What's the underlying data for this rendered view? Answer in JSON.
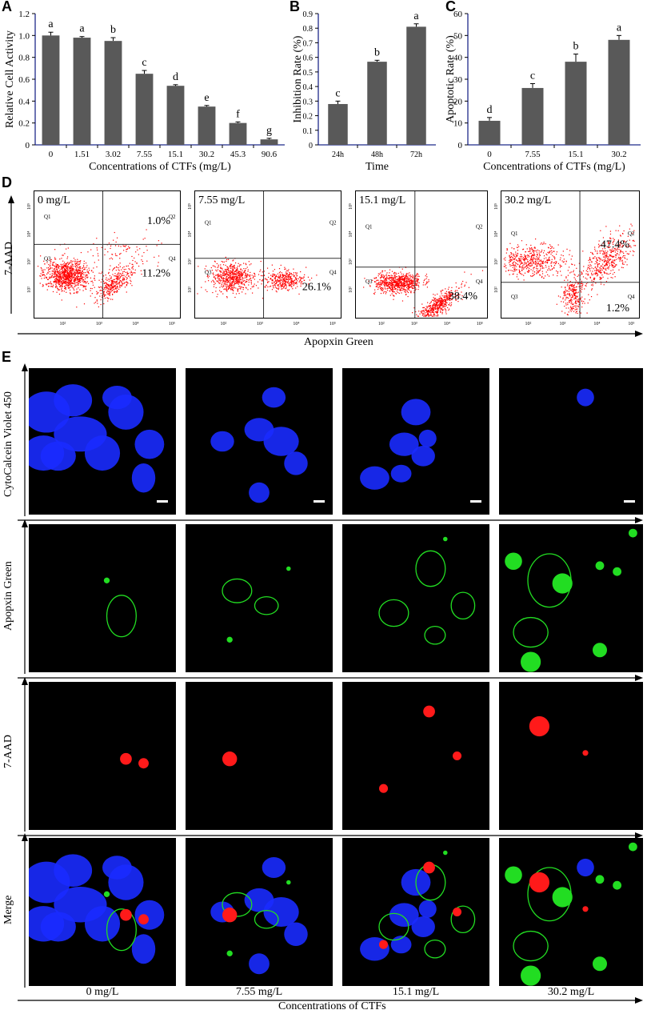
{
  "panel_letters": {
    "A": "A",
    "B": "B",
    "C": "C",
    "D": "D",
    "E": "E"
  },
  "chart_data": [
    {
      "type": "bar",
      "panel": "A",
      "categories": [
        "0",
        "1.51",
        "3.02",
        "7.55",
        "15.1",
        "30.2",
        "45.3",
        "90.6"
      ],
      "values": [
        1.0,
        0.98,
        0.95,
        0.65,
        0.54,
        0.35,
        0.2,
        0.05
      ],
      "errors": [
        0.03,
        0.01,
        0.03,
        0.03,
        0.01,
        0.01,
        0.01,
        0.01
      ],
      "letters": [
        "a",
        "a",
        "b",
        "c",
        "d",
        "e",
        "f",
        "g"
      ],
      "xlabel": "Concentrations of CTFs (mg/L)",
      "ylabel": "Relative Cell Activity",
      "ylim": [
        0,
        1.2
      ],
      "yticks": [
        "0",
        "0.2",
        "0.4",
        "0.6",
        "0.8",
        "1.0",
        "1.2"
      ],
      "color": "#595959"
    },
    {
      "type": "bar",
      "panel": "B",
      "categories": [
        "24h",
        "48h",
        "72h"
      ],
      "values": [
        0.28,
        0.57,
        0.81
      ],
      "errors": [
        0.02,
        0.01,
        0.02
      ],
      "letters": [
        "c",
        "b",
        "a"
      ],
      "xlabel": "Time",
      "ylabel": "Inhibition Rate (%)",
      "ylim": [
        0,
        0.9
      ],
      "yticks": [
        "0",
        "0.1",
        "0.2",
        "0.3",
        "0.4",
        "0.5",
        "0.6",
        "0.7",
        "0.8",
        "0.9"
      ],
      "color": "#595959"
    },
    {
      "type": "bar",
      "panel": "C",
      "categories": [
        "0",
        "7.55",
        "15.1",
        "30.2"
      ],
      "values": [
        11,
        26,
        38,
        48
      ],
      "errors": [
        1.5,
        2,
        3.5,
        2
      ],
      "letters": [
        "d",
        "c",
        "b",
        "a"
      ],
      "xlabel": "Concentrations of CTFs (mg/L)",
      "ylabel": "Apoptotic Rate (%)",
      "ylim": [
        0,
        60
      ],
      "yticks": [
        "0",
        "10",
        "20",
        "30",
        "40",
        "50",
        "60"
      ],
      "color": "#595959"
    }
  ],
  "flow": {
    "ylabel": "7-AAD",
    "xlabel": "Apopxin Green",
    "quadrants": [
      "Q1",
      "Q2",
      "Q3",
      "Q4"
    ],
    "yaxis_ticks": [
      "10⁵",
      "10⁴",
      "10³",
      "10²"
    ],
    "xaxis_ticks": [
      "10²",
      "10³",
      "10⁴",
      "10⁵"
    ],
    "dot_color": "#ff0000",
    "plots": [
      {
        "title": "0 mg/L",
        "upper": "1.0%",
        "lower": "11.2%"
      },
      {
        "title": "7.55 mg/L",
        "upper": "",
        "lower": "26.1%"
      },
      {
        "title": "15.1 mg/L",
        "upper": "",
        "lower": "38.4%"
      },
      {
        "title": "30.2 mg/L",
        "upper": "47.4%",
        "lower": "1.2%"
      }
    ]
  },
  "microscopy": {
    "rows": [
      "CytoCalcein Violet 450",
      "Apopxin Green",
      "7-AAD",
      "Merge"
    ],
    "columns": [
      "0 mg/L",
      "7.55 mg/L",
      "15.1 mg/L",
      "30.2 mg/L"
    ],
    "xlabel": "Concentrations of CTFs",
    "colors": {
      "blue": "#1a2bff",
      "green": "#22dd22",
      "red": "#ff1a1a"
    }
  }
}
